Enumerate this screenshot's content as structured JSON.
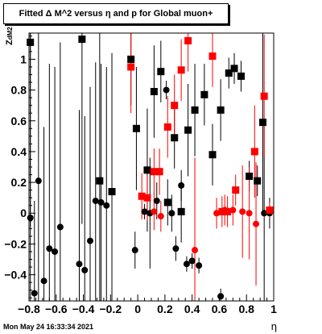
{
  "title": "Fitted Δ M^2 versus η and p for Global muon+",
  "ylabel_main": "Z",
  "ylabel_sub": "dM2",
  "xlabel": "η",
  "datestamp": "Mon May 24 16:33:34 2021",
  "colors": {
    "black_series": "#000000",
    "red_series": "#ff0000"
  },
  "chart_data": {
    "type": "scatter",
    "xlim": [
      -0.8,
      1.0
    ],
    "ylim": [
      -0.57,
      1.17
    ],
    "x_ticks": [
      -0.8,
      -0.6,
      -0.4,
      -0.2,
      0,
      0.2,
      0.4,
      0.6,
      0.8,
      1
    ],
    "x_tick_labels": [
      "−0.8",
      "−0.6",
      "−0.4",
      "−0.2",
      "0",
      "0.2",
      "0.4",
      "0.6",
      "0.8",
      "1"
    ],
    "y_ticks": [
      -0.4,
      -0.2,
      0,
      0.2,
      0.4,
      0.6,
      0.8,
      1
    ],
    "y_tick_labels": [
      "−0.4",
      "−0.2",
      "0",
      "0.2",
      "0.4",
      "0.6",
      "0.8",
      "1"
    ],
    "grid": false,
    "series": [
      {
        "marker": "circle",
        "color": "black",
        "points": [
          {
            "x": -0.79,
            "y": -0.03,
            "err": 1.2
          },
          {
            "x": -0.76,
            "y": -0.52,
            "err": 0.6
          },
          {
            "x": -0.73,
            "y": 0.21,
            "err": 1.2
          },
          {
            "x": -0.69,
            "y": -0.44,
            "err": 1.0
          },
          {
            "x": -0.65,
            "y": -0.23,
            "err": 1.2
          },
          {
            "x": -0.61,
            "y": -0.25,
            "err": 1.2
          },
          {
            "x": -0.57,
            "y": -0.09,
            "err": 1.2
          },
          {
            "x": -0.43,
            "y": -0.33,
            "err": 1.0
          },
          {
            "x": -0.39,
            "y": -0.37,
            "err": 1.0
          },
          {
            "x": -0.35,
            "y": -0.18,
            "err": 1.0
          },
          {
            "x": -0.31,
            "y": 0.08,
            "err": 0.9
          },
          {
            "x": -0.27,
            "y": 0.07,
            "err": 0.9
          },
          {
            "x": -0.23,
            "y": 0.05,
            "err": 0.9
          },
          {
            "x": -0.02,
            "y": -0.24,
            "err": 0.12
          },
          {
            "x": 0.05,
            "y": 0.01,
            "err": 0.05
          },
          {
            "x": 0.09,
            "y": 0.0,
            "err": 0.36
          },
          {
            "x": 0.14,
            "y": 0.08,
            "err": 0.12
          },
          {
            "x": 0.21,
            "y": 0.8,
            "err": 0.06
          },
          {
            "x": 0.25,
            "y": 0.0,
            "err": 0.12
          },
          {
            "x": 0.28,
            "y": -0.23,
            "err": 0.08
          },
          {
            "x": 0.32,
            "y": 0.18,
            "err": 0.1
          },
          {
            "x": 0.36,
            "y": -0.33,
            "err": 0.05
          },
          {
            "x": 0.4,
            "y": -0.31,
            "err": 0.05
          },
          {
            "x": 0.45,
            "y": -0.34,
            "err": 0.05
          },
          {
            "x": 0.61,
            "y": -0.54,
            "err": 0.05
          },
          {
            "x": 0.93,
            "y": 0.0,
            "err": 0.6
          },
          {
            "x": 0.97,
            "y": 0.0,
            "err": 0.1
          }
        ]
      },
      {
        "marker": "square",
        "color": "black",
        "points": [
          {
            "x": -0.79,
            "y": 1.11,
            "err": 1.2
          },
          {
            "x": -0.41,
            "y": 1.13,
            "err": 1.2
          },
          {
            "x": -0.28,
            "y": 0.21,
            "err": 1.0
          },
          {
            "x": -0.19,
            "y": 0.14,
            "err": 0.9
          },
          {
            "x": -0.05,
            "y": 1.0,
            "err": 0.3
          },
          {
            "x": -0.01,
            "y": 0.55,
            "err": 0.4
          },
          {
            "x": 0.07,
            "y": 0.28,
            "err": 0.4
          },
          {
            "x": 0.12,
            "y": 0.79,
            "err": 0.3
          },
          {
            "x": 0.17,
            "y": 0.92,
            "err": 0.2
          },
          {
            "x": 0.22,
            "y": 0.07,
            "err": 0.15
          },
          {
            "x": 0.27,
            "y": 0.49,
            "err": 0.2
          },
          {
            "x": 0.32,
            "y": 0.01,
            "err": 0.2
          },
          {
            "x": 0.37,
            "y": 0.54,
            "err": 0.3
          },
          {
            "x": 0.42,
            "y": 0.67,
            "err": 0.3
          },
          {
            "x": 0.49,
            "y": 0.77,
            "err": 0.2
          },
          {
            "x": 0.55,
            "y": 0.38,
            "err": 0.2
          },
          {
            "x": 0.61,
            "y": 0.67,
            "err": 0.2
          },
          {
            "x": 0.67,
            "y": 0.91,
            "err": 0.1
          },
          {
            "x": 0.71,
            "y": 0.94,
            "err": 0.1
          },
          {
            "x": 0.76,
            "y": 0.89,
            "err": 0.1
          },
          {
            "x": 0.82,
            "y": 0.24,
            "err": 0.1
          },
          {
            "x": 0.88,
            "y": 0.21,
            "err": 0.1
          },
          {
            "x": 0.92,
            "y": 0.59,
            "err": 0.6
          }
        ]
      },
      {
        "marker": "square",
        "color": "red",
        "points": [
          {
            "x": -0.05,
            "y": 0.95,
            "err": 0.3
          },
          {
            "x": 0.03,
            "y": 0.11,
            "err": 0.15
          },
          {
            "x": 0.07,
            "y": 0.1,
            "err": 0.15
          },
          {
            "x": 0.12,
            "y": 0.27,
            "err": 0.15
          },
          {
            "x": 0.16,
            "y": 0.27,
            "err": 0.15
          },
          {
            "x": 0.22,
            "y": 0.56,
            "err": 0.2
          },
          {
            "x": 0.27,
            "y": 0.7,
            "err": 0.2
          },
          {
            "x": 0.32,
            "y": 0.93,
            "err": 0.2
          },
          {
            "x": 0.37,
            "y": 1.12,
            "err": 0.2
          },
          {
            "x": 0.55,
            "y": 1.02,
            "err": 0.2
          },
          {
            "x": 0.62,
            "y": 0.01,
            "err": 0.1
          },
          {
            "x": 0.66,
            "y": 0.01,
            "err": 0.1
          },
          {
            "x": 0.72,
            "y": 0.15,
            "err": 0.1
          },
          {
            "x": 0.86,
            "y": 0.4,
            "err": 0.3
          },
          {
            "x": 0.93,
            "y": 0.76,
            "err": 0.4
          },
          {
            "x": 0.97,
            "y": 0.02,
            "err": 0.05
          }
        ]
      },
      {
        "marker": "circle",
        "color": "red",
        "points": [
          {
            "x": 0.12,
            "y": 0.01,
            "err": 0.12
          },
          {
            "x": 0.17,
            "y": -0.02,
            "err": 0.1
          },
          {
            "x": 0.42,
            "y": -0.24,
            "err": 0.6
          },
          {
            "x": 0.58,
            "y": 0.0,
            "err": 0.1
          },
          {
            "x": 0.64,
            "y": 0.02,
            "err": 0.1
          },
          {
            "x": 0.7,
            "y": 0.02,
            "err": 0.1
          },
          {
            "x": 0.77,
            "y": 0.01,
            "err": 0.3
          },
          {
            "x": 0.82,
            "y": 0.0,
            "err": 0.3
          },
          {
            "x": 0.87,
            "y": -0.07,
            "err": 0.4
          }
        ]
      }
    ]
  }
}
